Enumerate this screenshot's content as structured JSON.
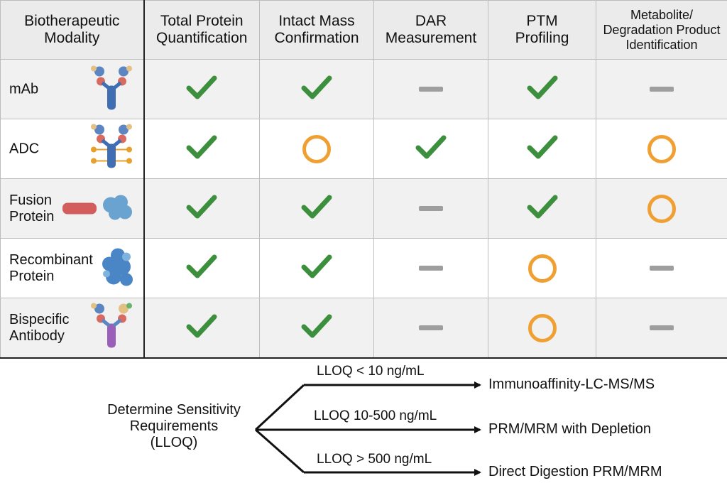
{
  "headers": {
    "modality": [
      "Biotherapeutic",
      "Modality"
    ],
    "total_protein": [
      "Total Protein",
      "Quantification"
    ],
    "intact_mass": [
      "Intact Mass",
      "Confirmation"
    ],
    "dar": [
      "DAR",
      "Measurement"
    ],
    "ptm": [
      "PTM",
      "Profiling"
    ],
    "metabolite": [
      "Metabolite/",
      "Degradation Product",
      "Identification"
    ]
  },
  "rows": [
    {
      "label": [
        "mAb"
      ],
      "art": "mab-structure-icon",
      "marks": [
        "check",
        "check",
        "dash",
        "check",
        "dash"
      ]
    },
    {
      "label": [
        "ADC"
      ],
      "art": "adc-structure-icon",
      "marks": [
        "check",
        "circle",
        "check",
        "check",
        "circle"
      ]
    },
    {
      "label": [
        "Fusion",
        "Protein"
      ],
      "art": "fusion-protein-structure-icon",
      "marks": [
        "check",
        "check",
        "dash",
        "check",
        "circle"
      ]
    },
    {
      "label": [
        "Recombinant",
        "Protein"
      ],
      "art": "recombinant-protein-structure-icon",
      "marks": [
        "check",
        "check",
        "dash",
        "circle",
        "dash"
      ]
    },
    {
      "label": [
        "Bispecific",
        "Antibody"
      ],
      "art": "bispecific-antibody-structure-icon",
      "marks": [
        "check",
        "check",
        "dash",
        "circle",
        "dash"
      ]
    }
  ],
  "mark_icons": {
    "check": "check-icon",
    "circle": "circle-icon",
    "dash": "dash-icon"
  },
  "colors": {
    "check": "#3c8f3c",
    "circle": "#f0a032",
    "dash": "#9e9e9e",
    "header_bg": "#ebebeb"
  },
  "flow": {
    "root": [
      "Determine Sensitivity",
      "Requirements",
      "(LLOQ)"
    ],
    "branches": [
      {
        "condition": "LLOQ < 10 ng/mL",
        "method": "Immunoaffinity-LC-MS/MS"
      },
      {
        "condition": "LLOQ 10-500 ng/mL",
        "method": "PRM/MRM with Depletion"
      },
      {
        "condition": "LLOQ > 500 ng/mL",
        "method": "Direct Digestion PRM/MRM"
      }
    ]
  }
}
